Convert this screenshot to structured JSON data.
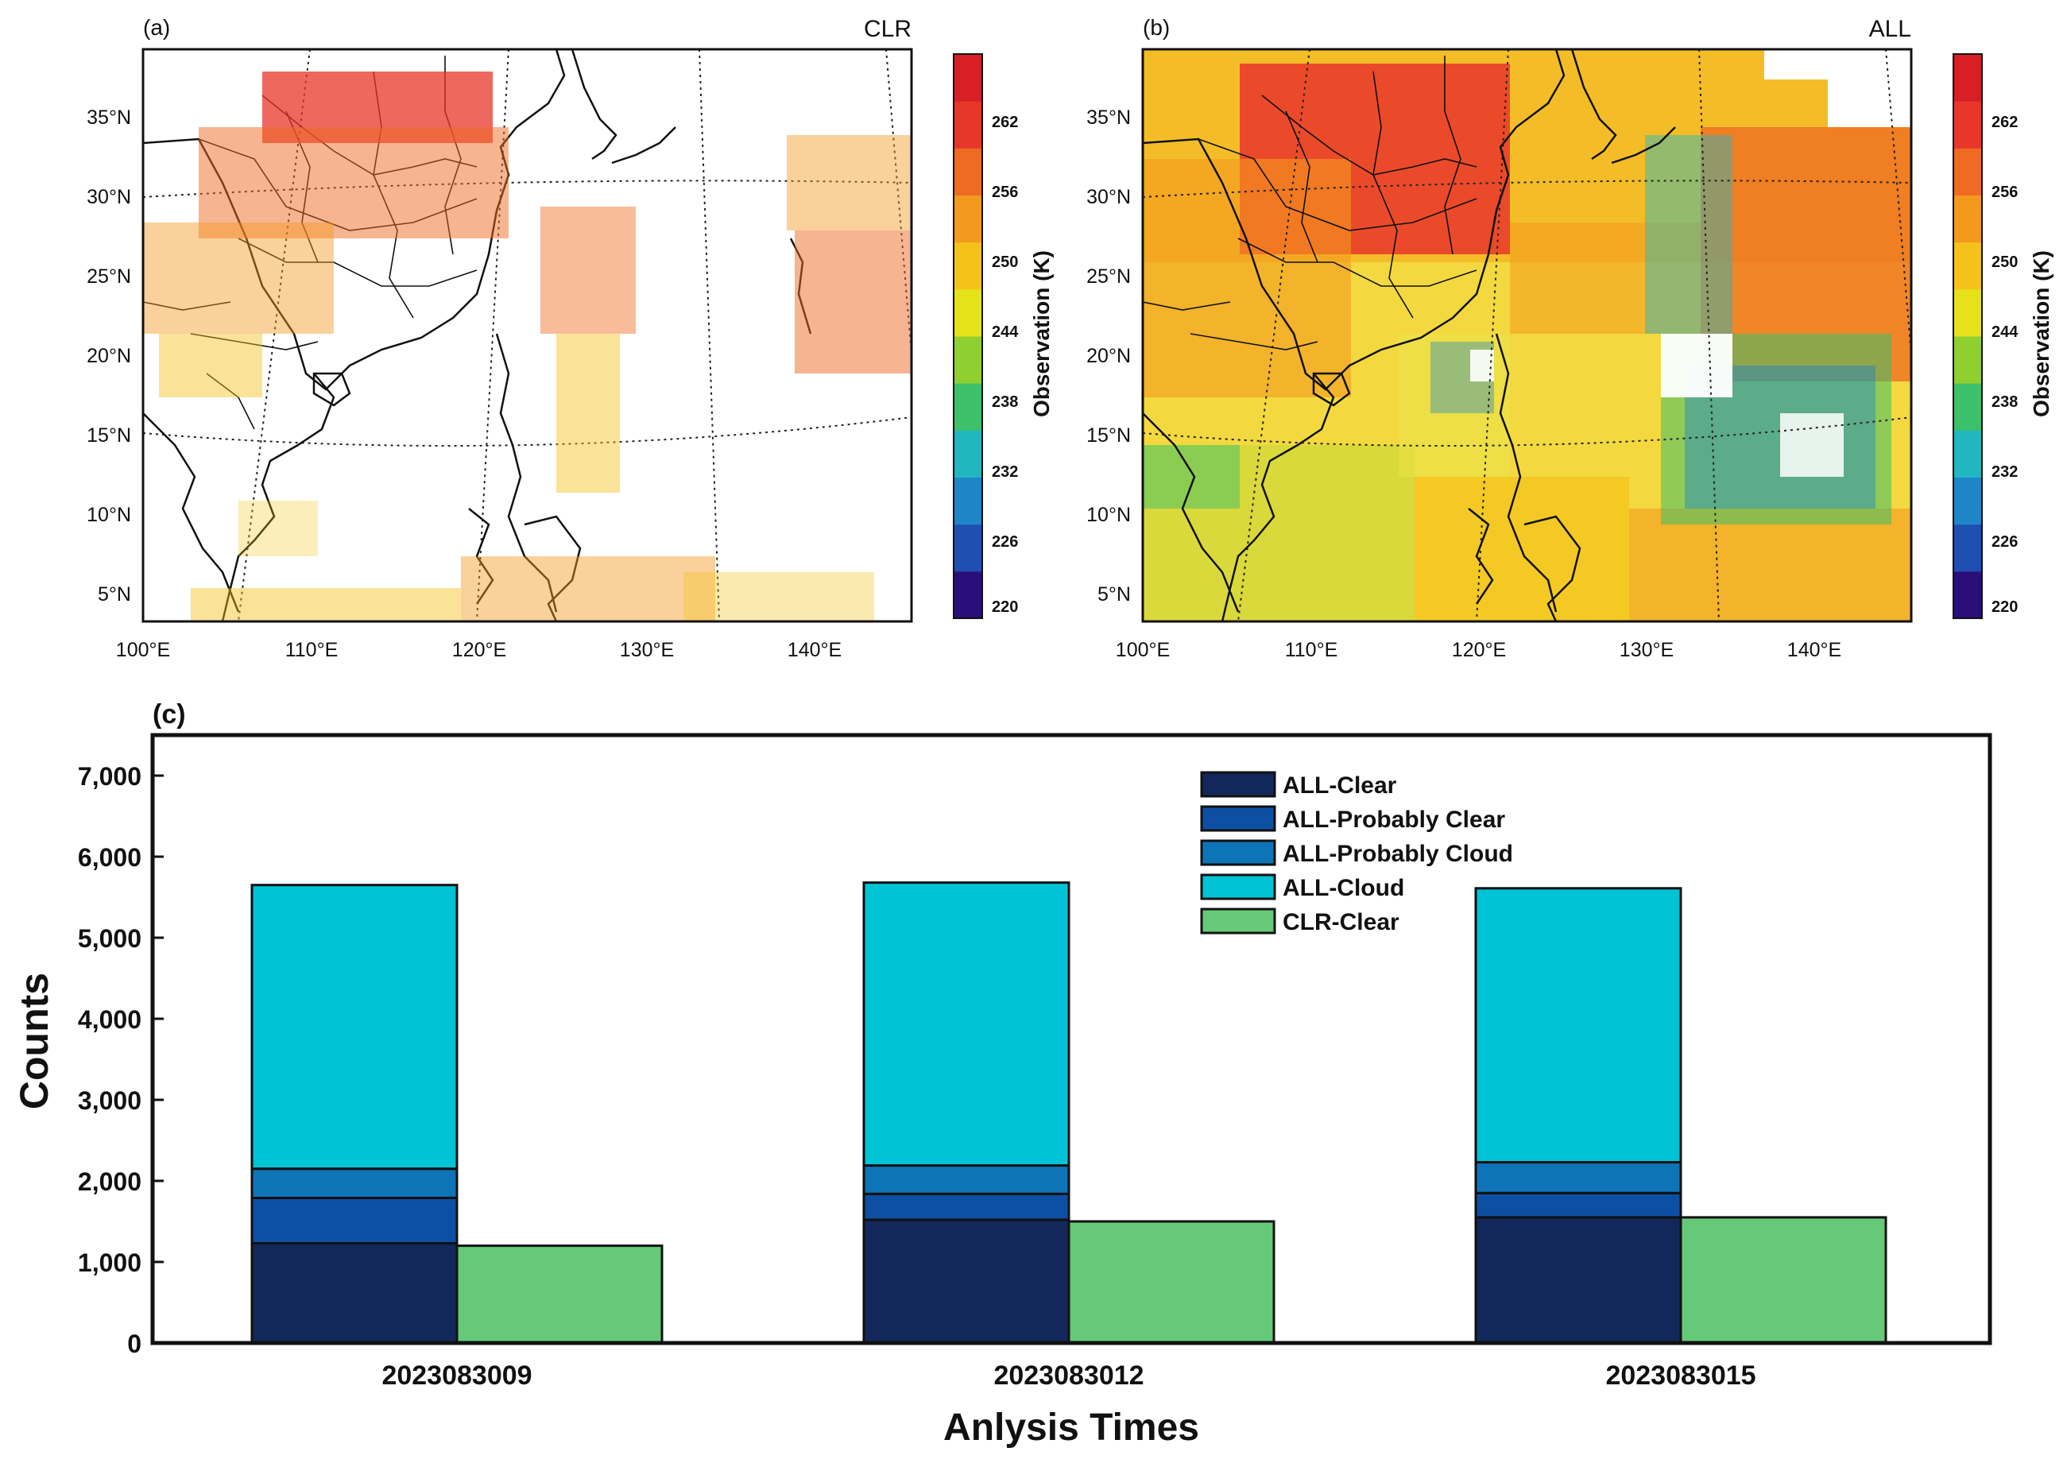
{
  "panel_a": {
    "label": "(a)",
    "title": "CLR",
    "lon_labels": [
      "100°E",
      "110°E",
      "120°E",
      "130°E",
      "140°E"
    ],
    "lat_labels": [
      "35°N",
      "30°N",
      "25°N",
      "20°N",
      "15°N",
      "10°N",
      "5°N"
    ],
    "colorbar_label": "Observation (K)",
    "colorbar_ticks": [
      "262",
      "256",
      "250",
      "244",
      "238",
      "232",
      "226",
      "220"
    ]
  },
  "panel_b": {
    "label": "(b)",
    "title": "ALL",
    "lon_labels": [
      "100°E",
      "110°E",
      "120°E",
      "130°E",
      "140°E"
    ],
    "lat_labels": [
      "35°N",
      "30°N",
      "25°N",
      "20°N",
      "15°N",
      "10°N",
      "5°N"
    ],
    "colorbar_label": "Observation (K)",
    "colorbar_ticks": [
      "262",
      "256",
      "250",
      "244",
      "238",
      "232",
      "226",
      "220"
    ]
  },
  "colorbar_colors": [
    "#2a0f7a",
    "#1f4fb0",
    "#1e86c8",
    "#20b7c0",
    "#3cc06a",
    "#8fd030",
    "#e6e21a",
    "#f4c21a",
    "#f39a1e",
    "#ef6a22",
    "#e8362a",
    "#d81f26"
  ],
  "chart_data": {
    "type": "bar",
    "label": "(c)",
    "title": "",
    "xlabel": "Anlysis Times",
    "ylabel": "Counts",
    "ylim": [
      0,
      7500
    ],
    "ytick_labels": [
      "0",
      "1,000",
      "2,000",
      "3,000",
      "4,000",
      "5,000",
      "6,000",
      "7,000"
    ],
    "categories": [
      "2023083009",
      "2023083012",
      "2023083015"
    ],
    "stacked_series": [
      {
        "name": "ALL-Clear",
        "color": "#13285a",
        "values": [
          1230,
          1520,
          1550
        ]
      },
      {
        "name": "ALL-Probably Clear",
        "color": "#0d4fa3",
        "values": [
          560,
          320,
          300
        ]
      },
      {
        "name": "ALL-Probably Cloud",
        "color": "#0e74b8",
        "values": [
          360,
          350,
          380
        ]
      },
      {
        "name": "ALL-Cloud",
        "color": "#00c4d6",
        "values": [
          3500,
          3490,
          3380
        ]
      }
    ],
    "side_series": {
      "name": "CLR-Clear",
      "color": "#66c97a",
      "values": [
        1200,
        1500,
        1550
      ]
    },
    "legend": [
      "ALL-Clear",
      "ALL-Probably Clear",
      "ALL-Probably Cloud",
      "ALL-Cloud",
      "CLR-Clear"
    ],
    "legend_position": "top-right"
  }
}
